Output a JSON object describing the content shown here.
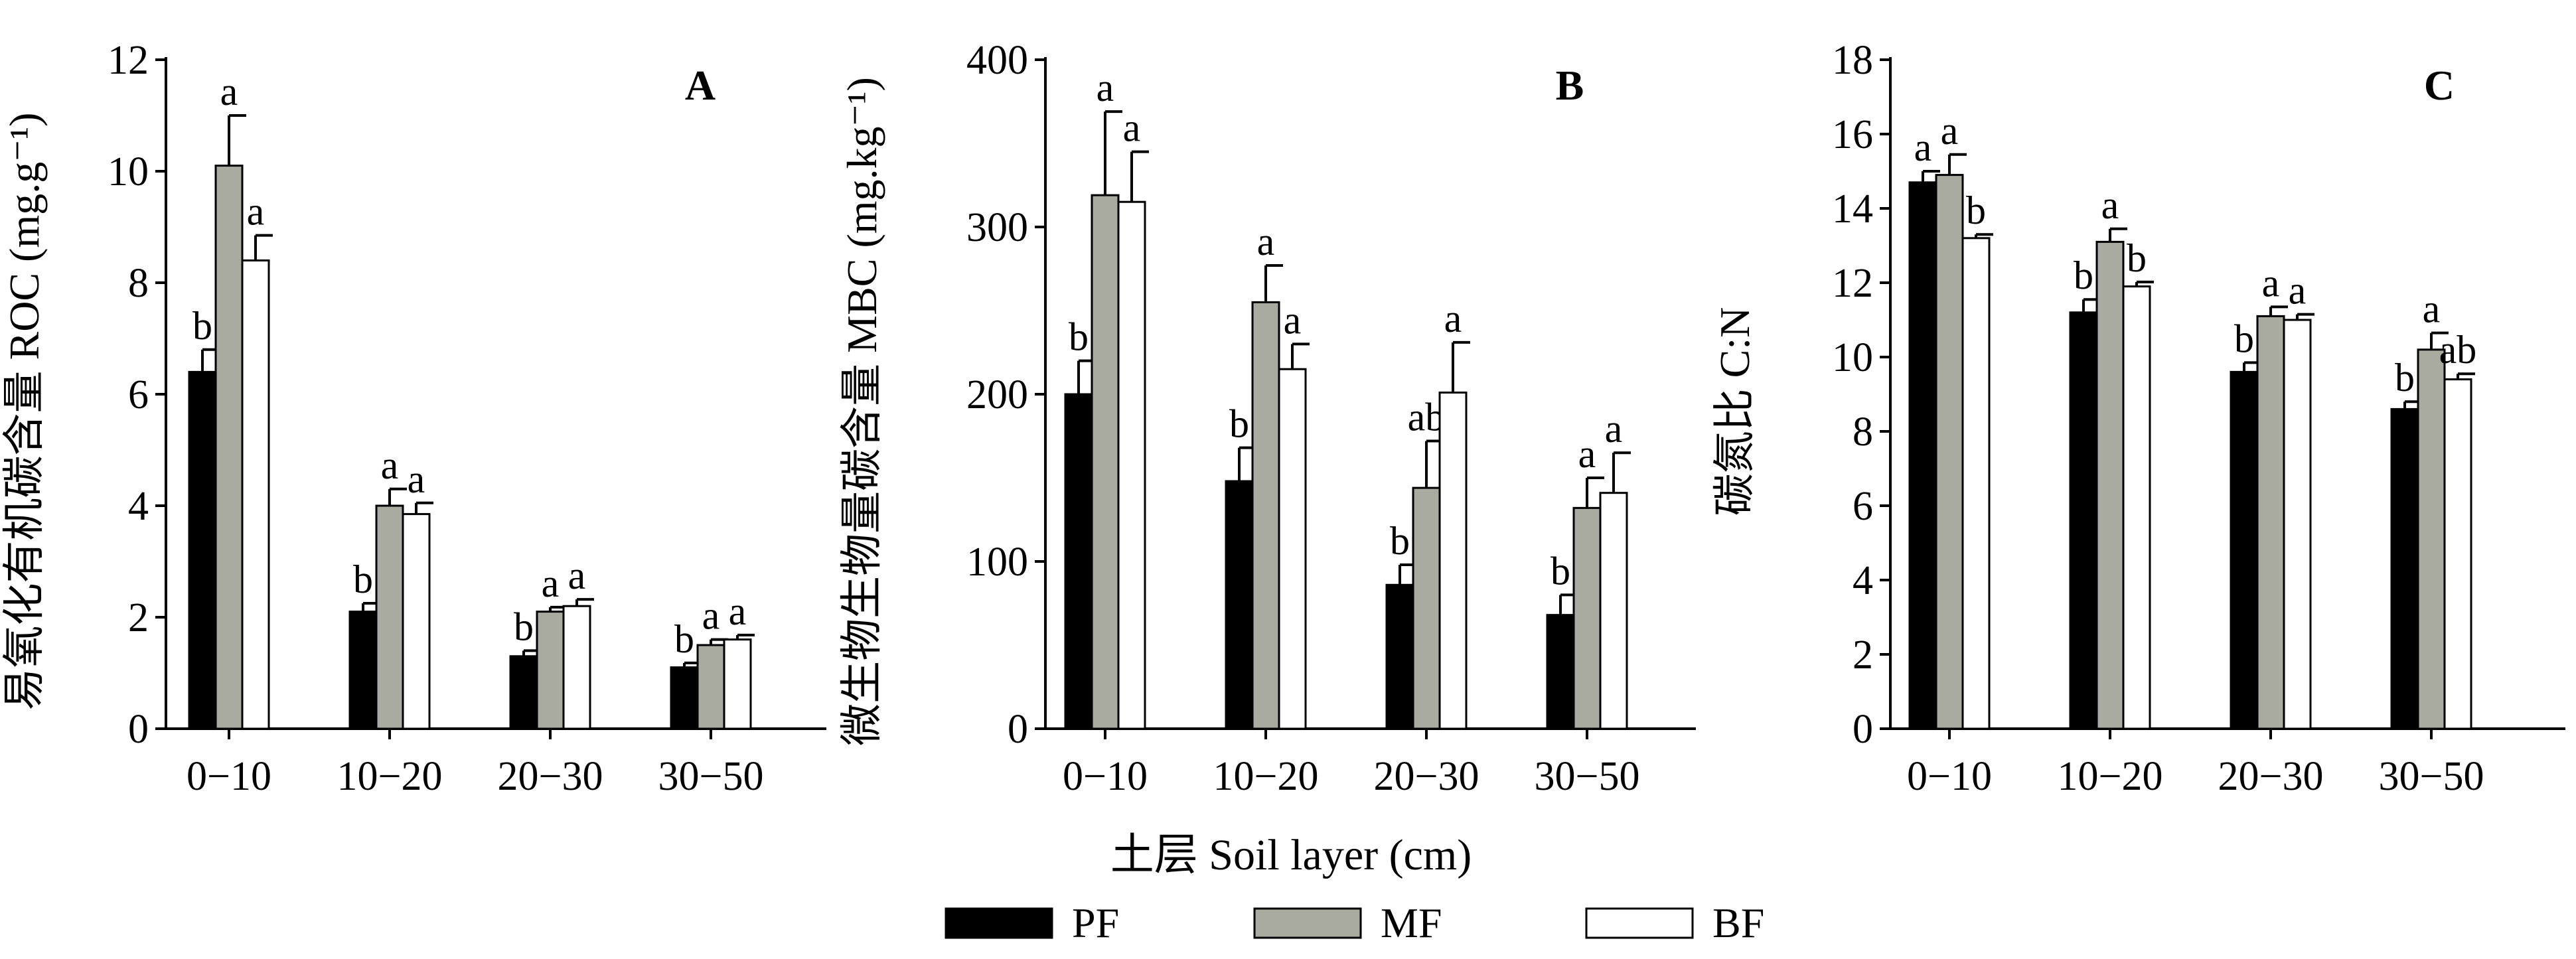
{
  "legend": [
    {
      "name": "PF",
      "color": "#000000"
    },
    {
      "name": "MF",
      "color": "#a9aaa0"
    },
    {
      "name": "BF",
      "color": "#ffffff"
    }
  ],
  "xlabel": "土层 Soil layer (cm)",
  "chart_data": [
    {
      "type": "bar",
      "panel": "A",
      "ylabel": "易氧化有机碳含量 ROC (mg.g⁻¹)",
      "ylim": [
        0,
        12
      ],
      "yticks": [
        0,
        2,
        4,
        6,
        8,
        10,
        12
      ],
      "categories": [
        "0−10",
        "10−20",
        "20−30",
        "30−50"
      ],
      "series": [
        {
          "name": "PF",
          "values": [
            6.4,
            2.1,
            1.3,
            1.1
          ],
          "errors": [
            0.4,
            0.15,
            0.1,
            0.08
          ],
          "letters": [
            "b",
            "b",
            "b",
            "b"
          ]
        },
        {
          "name": "MF",
          "values": [
            10.1,
            4.0,
            2.1,
            1.5
          ],
          "errors": [
            0.9,
            0.3,
            0.08,
            0.1
          ],
          "letters": [
            "a",
            "a",
            "a",
            "a"
          ]
        },
        {
          "name": "BF",
          "values": [
            8.4,
            3.85,
            2.2,
            1.6
          ],
          "errors": [
            0.45,
            0.2,
            0.12,
            0.08
          ],
          "letters": [
            "a",
            "a",
            "a",
            "a"
          ]
        }
      ]
    },
    {
      "type": "bar",
      "panel": "B",
      "ylabel": "微生物生物量碳含量 MBC (mg.kg⁻¹)",
      "ylim": [
        0,
        400
      ],
      "yticks": [
        0,
        100,
        200,
        300,
        400
      ],
      "categories": [
        "0−10",
        "10−20",
        "20−30",
        "30−50"
      ],
      "series": [
        {
          "name": "PF",
          "values": [
            200,
            148,
            86,
            68
          ],
          "errors": [
            20,
            20,
            12,
            12
          ],
          "letters": [
            "b",
            "b",
            "b",
            "b"
          ]
        },
        {
          "name": "MF",
          "values": [
            319,
            255,
            144,
            132
          ],
          "errors": [
            50,
            22,
            28,
            18
          ],
          "letters": [
            "a",
            "a",
            "ab",
            "a"
          ]
        },
        {
          "name": "BF",
          "values": [
            315,
            215,
            201,
            141
          ],
          "errors": [
            30,
            15,
            30,
            24
          ],
          "letters": [
            "a",
            "a",
            "a",
            "a"
          ]
        }
      ]
    },
    {
      "type": "bar",
      "panel": "C",
      "ylabel": "碳氮比 C:N",
      "ylim": [
        0,
        18
      ],
      "yticks": [
        0,
        2,
        4,
        6,
        8,
        10,
        12,
        14,
        16,
        18
      ],
      "categories": [
        "0−10",
        "10−20",
        "20−30",
        "30−50"
      ],
      "series": [
        {
          "name": "PF",
          "values": [
            14.7,
            11.2,
            9.6,
            8.6
          ],
          "errors": [
            0.3,
            0.35,
            0.25,
            0.2
          ],
          "letters": [
            "a",
            "b",
            "b",
            "b"
          ]
        },
        {
          "name": "MF",
          "values": [
            14.9,
            13.1,
            11.1,
            10.2
          ],
          "errors": [
            0.55,
            0.35,
            0.25,
            0.45
          ],
          "letters": [
            "a",
            "a",
            "a",
            "a"
          ]
        },
        {
          "name": "BF",
          "values": [
            13.2,
            11.9,
            11.0,
            9.4
          ],
          "errors": [
            0.1,
            0.12,
            0.15,
            0.15
          ],
          "letters": [
            "b",
            "b",
            "a",
            "ab"
          ]
        }
      ]
    }
  ]
}
